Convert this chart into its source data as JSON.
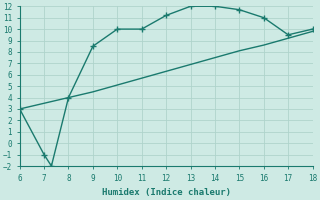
{
  "line1_x": [
    6,
    7,
    7.3,
    8,
    9,
    10,
    11,
    12,
    13,
    14,
    15,
    16,
    17,
    18
  ],
  "line1_y": [
    3,
    -1.0,
    -2,
    4,
    8.5,
    10,
    10,
    11.2,
    12,
    12,
    11.7,
    11,
    9.5,
    10
  ],
  "line2_x": [
    6,
    7,
    8,
    9,
    10,
    11,
    12,
    13,
    14,
    15,
    16,
    17,
    18
  ],
  "line2_y": [
    3,
    3.5,
    4.0,
    4.5,
    5.1,
    5.7,
    6.3,
    6.9,
    7.5,
    8.1,
    8.6,
    9.2,
    9.8
  ],
  "line_color": "#1a7a6e",
  "bg_color": "#ceeae4",
  "grid_color": "#afd4cc",
  "xlabel": "Humidex (Indice chaleur)",
  "xlim": [
    6,
    18
  ],
  "ylim": [
    -2,
    12
  ],
  "yticks": [
    -2,
    -1,
    0,
    1,
    2,
    3,
    4,
    5,
    6,
    7,
    8,
    9,
    10,
    11,
    12
  ],
  "xticks": [
    6,
    7,
    8,
    9,
    10,
    11,
    12,
    13,
    14,
    15,
    16,
    17,
    18
  ],
  "marker": "+",
  "markersize": 4,
  "linewidth": 1.0
}
